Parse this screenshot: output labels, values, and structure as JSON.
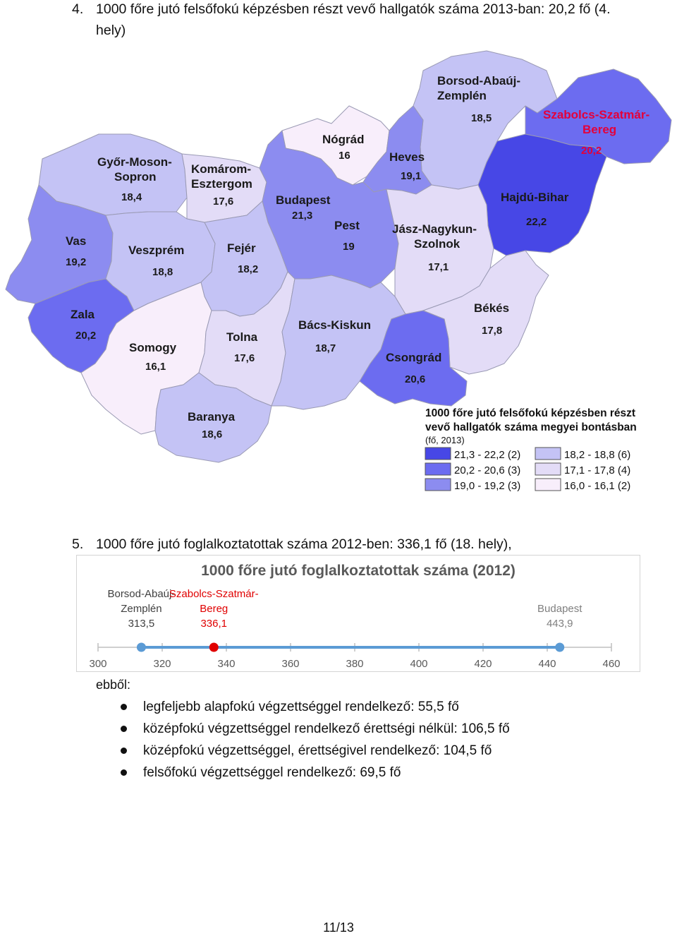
{
  "section4": {
    "number": "4.",
    "line1": "1000 főre jutó felsőfokú képzésben részt vevő hallgatók száma 2013-ban: 20,2 fő (4.",
    "line2": "hely)"
  },
  "map": {
    "regions": [
      {
        "id": "borsod",
        "name1": "Borsod-Abaúj-",
        "name2": "Zemplén",
        "value": "18,5",
        "color": "#c4c3f5"
      },
      {
        "id": "szabolcs",
        "name1": "Szabolcs-Szatmár-",
        "name2": "Bereg",
        "value": "20,2",
        "color": "#6c6cf0",
        "highlight": true
      },
      {
        "id": "nograd",
        "name1": "Nógrád",
        "value": "16",
        "color": "#f8eefb"
      },
      {
        "id": "heves",
        "name1": "Heves",
        "value": "19,1",
        "color": "#8c8cf0"
      },
      {
        "id": "gyor",
        "name1": "Győr-Moson-",
        "name2": "Sopron",
        "value": "18,4",
        "color": "#c4c3f5"
      },
      {
        "id": "komarom",
        "name1": "Komárom-",
        "name2": "Esztergom",
        "value": "17,6",
        "color": "#e3dcf7"
      },
      {
        "id": "budapest",
        "name1": "Budapest",
        "value": "21,3",
        "color": "#4747e6"
      },
      {
        "id": "pest",
        "name1": "Pest",
        "value": "19",
        "color": "#8c8cf0"
      },
      {
        "id": "hajdu",
        "name1": "Hajdú-Bihar",
        "value": "22,2",
        "color": "#4747e6"
      },
      {
        "id": "jasz",
        "name1": "Jász-Nagykun-",
        "name2": "Szolnok",
        "value": "17,1",
        "color": "#e3dcf7"
      },
      {
        "id": "vas",
        "name1": "Vas",
        "value": "19,2",
        "color": "#8c8cf0"
      },
      {
        "id": "veszprem",
        "name1": "Veszprém",
        "value": "18,8",
        "color": "#c4c3f5"
      },
      {
        "id": "fejer",
        "name1": "Fejér",
        "value": "18,2",
        "color": "#c4c3f5"
      },
      {
        "id": "zala",
        "name1": "Zala",
        "value": "20,2",
        "color": "#6c6cf0"
      },
      {
        "id": "somogy",
        "name1": "Somogy",
        "value": "16,1",
        "color": "#f8eefb"
      },
      {
        "id": "tolna",
        "name1": "Tolna",
        "value": "17,6",
        "color": "#e3dcf7"
      },
      {
        "id": "bacs",
        "name1": "Bács-Kiskun",
        "value": "18,7",
        "color": "#c4c3f5"
      },
      {
        "id": "bekes",
        "name1": "Békés",
        "value": "17,8",
        "color": "#e3dcf7"
      },
      {
        "id": "csongrad",
        "name1": "Csongrád",
        "value": "20,6",
        "color": "#6c6cf0"
      },
      {
        "id": "baranya",
        "name1": "Baranya",
        "value": "18,6",
        "color": "#c4c3f5"
      }
    ],
    "legend": {
      "title1": "1000 főre jutó felsőfokú képzésben részt",
      "title2": "vevő hallgatók száma megyei bontásban",
      "subtitle": "(fő, 2013)",
      "items": [
        {
          "label": "21,3 - 22,2 (2)",
          "color": "#4747e6"
        },
        {
          "label": "20,2 - 20,6 (3)",
          "color": "#6c6cf0"
        },
        {
          "label": "19,0 - 19,2 (3)",
          "color": "#8c8cf0"
        },
        {
          "label": "18,2 - 18,8 (6)",
          "color": "#c4c3f5"
        },
        {
          "label": "17,1 - 17,8 (4)",
          "color": "#e3dcf7"
        },
        {
          "label": "16,0 - 16,1 (2)",
          "color": "#f8eefb"
        }
      ]
    }
  },
  "section5": {
    "number": "5.",
    "line1": "1000 főre jutó foglalkoztatottak száma 2012-ben: 336,1 fő (18. hely),"
  },
  "chart_data": {
    "type": "scatter",
    "title": "1000 főre jutó foglalkoztatottak száma (2012)",
    "xlim": [
      300,
      460
    ],
    "ticks": [
      300,
      320,
      340,
      360,
      380,
      400,
      420,
      440,
      460
    ],
    "points": [
      {
        "name1": "Borsod-Abaúj-",
        "name2": "Zemplén",
        "value_label": "313,5",
        "x": 313.5,
        "color": "#5b9bd5",
        "label_color": "#404040"
      },
      {
        "name1": "Szabolcs-Szatmár-",
        "name2": "Bereg",
        "value_label": "336,1",
        "x": 336.1,
        "color": "#e00000",
        "label_color": "#e00000"
      },
      {
        "name1": "Budapest",
        "name2": "",
        "value_label": "443,9",
        "x": 443.9,
        "color": "#5b9bd5",
        "label_color": "#7f7f7f"
      }
    ],
    "line_color": "#5b9bd5"
  },
  "breakdown": {
    "intro": "ebből:",
    "items": [
      "legfeljebb alapfokú végzettséggel rendelkező: 55,5 fő",
      "középfokú végzettséggel rendelkező érettségi nélkül: 106,5 fő",
      "középfokú végzettséggel, érettségivel rendelkező: 104,5 fő",
      "felsőfokú végzettséggel rendelkező: 69,5 fő"
    ]
  },
  "footer": {
    "page": "11/13"
  }
}
